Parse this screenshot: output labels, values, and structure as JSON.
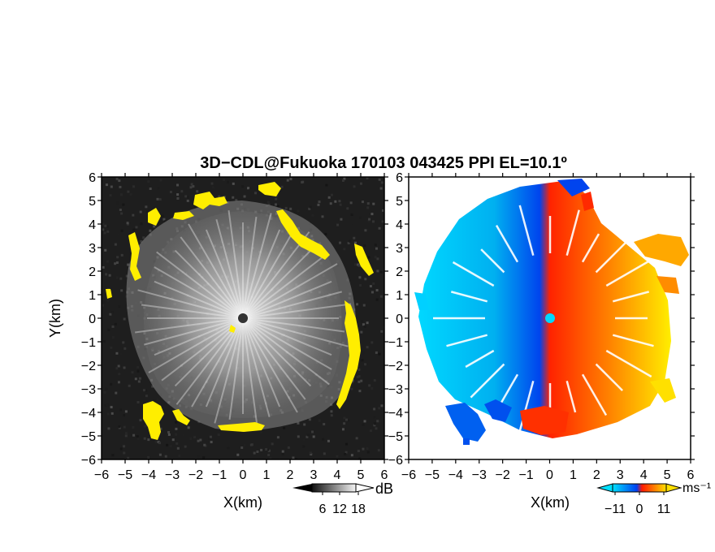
{
  "chart_data": {
    "title": "3D−CDL@Fukuoka 170103 043425 PPI EL=10.1º",
    "panels": [
      {
        "type": "heatmap",
        "quantity": "SNR",
        "xlabel": "X(km)",
        "ylabel": "Y(km)",
        "xlim": [
          -6,
          6
        ],
        "ylim": [
          -6,
          6
        ],
        "x_ticks": [
          "−6",
          "−5",
          "−4",
          "−3",
          "−2",
          "−1",
          "0",
          "1",
          "2",
          "3",
          "4",
          "5",
          "6"
        ],
        "y_ticks": [
          "6",
          "5",
          "4",
          "3",
          "2",
          "1",
          "0",
          "−1",
          "−2",
          "−3",
          "−4",
          "−5",
          "−6"
        ],
        "colorbar": {
          "unit": "dB",
          "tick_labels": [
            "6",
            "12",
            "18"
          ],
          "colormap": "grayscale"
        },
        "highlight_color": "#ffee00"
      },
      {
        "type": "heatmap",
        "quantity": "Doppler velocity",
        "xlabel": "X(km)",
        "xlim": [
          -6,
          6
        ],
        "ylim": [
          -6,
          6
        ],
        "x_ticks": [
          "−6",
          "−5",
          "−4",
          "−3",
          "−2",
          "−1",
          "0",
          "1",
          "2",
          "3",
          "4",
          "5",
          "6"
        ],
        "y_ticks": [
          "6",
          "5",
          "4",
          "3",
          "2",
          "1",
          "0",
          "−1",
          "−2",
          "−3",
          "−4",
          "−5",
          "−6"
        ],
        "colorbar": {
          "unit": "ms⁻¹",
          "tick_labels": [
            "−11",
            "0",
            "11"
          ],
          "colormap": "blue-cyan-red-yellow"
        }
      }
    ]
  },
  "colors": {
    "cyan": "#00d8ff",
    "blue": "#0044ee",
    "red": "#ff2200",
    "yellow": "#ffee00"
  }
}
